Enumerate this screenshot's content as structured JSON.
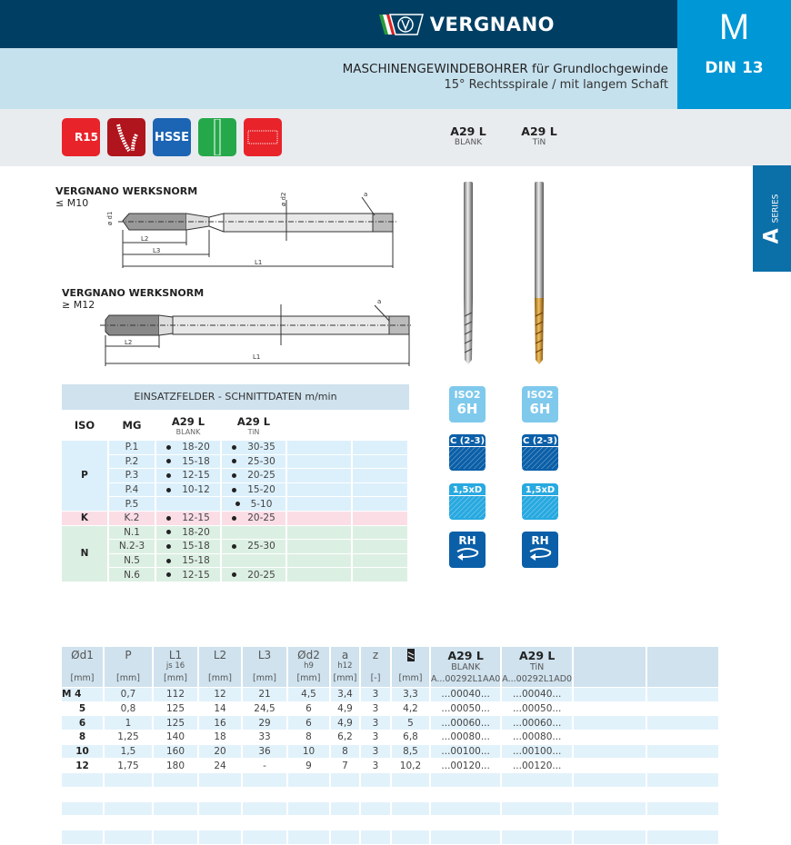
{
  "header": {
    "brand": "VERGNANO",
    "title": "MASCHINENGEWINDEBOHRER für Grundlochgewinde",
    "subtitle": "15° Rechtsspirale / mit langem Schaft",
    "letter": "M",
    "norm": "DIN 13"
  },
  "feature_icons": [
    {
      "name": "r15-spiral-icon",
      "label": "R15",
      "color": "#e8232a"
    },
    {
      "name": "chips-icon",
      "label": "",
      "color": "#b0141c"
    },
    {
      "name": "hsse-material-icon",
      "label": "HSSE",
      "color": "#1c64b4"
    },
    {
      "name": "long-shank-icon",
      "label": "",
      "color": "#25a84a"
    },
    {
      "name": "thread-icon",
      "label": "",
      "color": "#e8232a"
    }
  ],
  "products": [
    {
      "name": "A29 L",
      "coating": "BLANK"
    },
    {
      "name": "A29 L",
      "coating": "TiN"
    }
  ],
  "series": {
    "letter": "A",
    "label": "SERIES"
  },
  "drawings": [
    {
      "title": "VERGNANO WERKSNORM",
      "range": "≤ M10"
    },
    {
      "title": "VERGNANO WERKSNORM",
      "range": "≥ M12"
    }
  ],
  "cutting_table": {
    "title": "EINSATZFELDER - SCHNITTDATEN m/min",
    "headers": {
      "iso": "ISO",
      "mg": "MG"
    },
    "groups": [
      {
        "iso": "P",
        "cls": "p",
        "rows": [
          [
            "P.1",
            "18-20",
            "30-35"
          ],
          [
            "P.2",
            "15-18",
            "25-30"
          ],
          [
            "P.3",
            "12-15",
            "20-25"
          ],
          [
            "P.4",
            "10-12",
            "15-20"
          ],
          [
            "P.5",
            "",
            "5-10"
          ]
        ]
      },
      {
        "iso": "K",
        "cls": "k",
        "rows": [
          [
            "K.2",
            "12-15",
            "20-25"
          ]
        ]
      },
      {
        "iso": "N",
        "cls": "n",
        "rows": [
          [
            "N.1",
            "18-20",
            ""
          ],
          [
            "N.2-3",
            "15-18",
            "25-30"
          ],
          [
            "N.5",
            "15-18",
            ""
          ],
          [
            "N.6",
            "12-15",
            "20-25"
          ]
        ]
      }
    ]
  },
  "badges": [
    {
      "name": "tolerance-badge",
      "l1": "ISO2",
      "l2": "6H",
      "color": "#7fc9ec"
    },
    {
      "name": "chamfer-badge",
      "l1": "C (2-3)",
      "l2": "",
      "color": "#0b5fa8"
    },
    {
      "name": "depth-badge",
      "l1": "1,5xD",
      "l2": "",
      "color": "#28a9e0"
    },
    {
      "name": "right-hand-badge",
      "l1": "RH",
      "l2": "",
      "color": "#0b5fa8"
    }
  ],
  "dim_table": {
    "headers": [
      {
        "h": "Ød1",
        "s": "",
        "u": "[mm]"
      },
      {
        "h": "P",
        "s": "",
        "u": "[mm]"
      },
      {
        "h": "L1",
        "s": "js 16",
        "u": "[mm]"
      },
      {
        "h": "L2",
        "s": "",
        "u": "[mm]"
      },
      {
        "h": "L3",
        "s": "",
        "u": "[mm]"
      },
      {
        "h": "Ød2",
        "s": "h9",
        "u": "[mm]"
      },
      {
        "h": "a",
        "s": "h12",
        "u": "[mm]"
      },
      {
        "h": "z",
        "s": "",
        "u": "[-]"
      },
      {
        "h": "",
        "s": "",
        "u": "[mm]"
      }
    ],
    "codes": [
      "A...00292L1AA0",
      "A...00292L1AD0"
    ],
    "rows": [
      [
        "M 4",
        "0,7",
        "112",
        "12",
        "21",
        "4,5",
        "3,4",
        "3",
        "3,3",
        "...00040...",
        "...00040..."
      ],
      [
        "5",
        "0,8",
        "125",
        "14",
        "24,5",
        "6",
        "4,9",
        "3",
        "4,2",
        "...00050...",
        "...00050..."
      ],
      [
        "6",
        "1",
        "125",
        "16",
        "29",
        "6",
        "4,9",
        "3",
        "5",
        "...00060...",
        "...00060..."
      ],
      [
        "8",
        "1,25",
        "140",
        "18",
        "33",
        "8",
        "6,2",
        "3",
        "6,8",
        "...00080...",
        "...00080..."
      ],
      [
        "10",
        "1,5",
        "160",
        "20",
        "36",
        "10",
        "8",
        "3",
        "8,5",
        "...00100...",
        "...00100..."
      ],
      [
        "12",
        "1,75",
        "180",
        "24",
        "-",
        "9",
        "7",
        "3",
        "10,2",
        "...00120...",
        "...00120..."
      ]
    ]
  }
}
